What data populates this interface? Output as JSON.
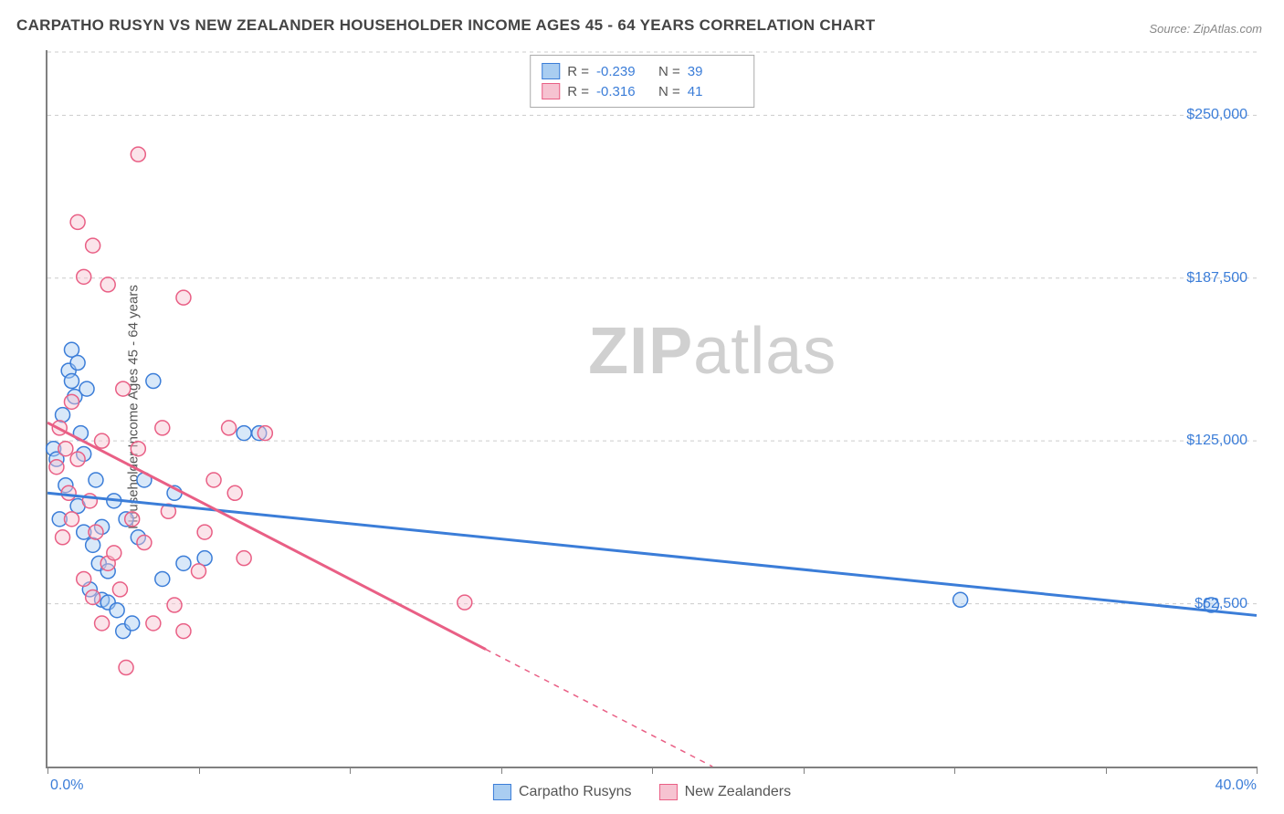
{
  "title": "CARPATHO RUSYN VS NEW ZEALANDER HOUSEHOLDER INCOME AGES 45 - 64 YEARS CORRELATION CHART",
  "source": "Source: ZipAtlas.com",
  "watermark_bold": "ZIP",
  "watermark_light": "atlas",
  "chart": {
    "type": "scatter",
    "ylabel": "Householder Income Ages 45 - 64 years",
    "xlim": [
      0,
      40
    ],
    "ylim": [
      0,
      275000
    ],
    "x_tick_labels": {
      "start": "0.0%",
      "end": "40.0%"
    },
    "y_ticks": [
      62500,
      125000,
      187500,
      250000
    ],
    "y_tick_labels": [
      "$62,500",
      "$125,000",
      "$187,500",
      "$250,000"
    ],
    "background_color": "#ffffff",
    "grid_color": "#cccccc",
    "axis_color": "#808080",
    "marker_radius": 8,
    "marker_opacity": 0.45,
    "line_width": 3,
    "series": [
      {
        "name": "Carpatho Rusyns",
        "color_fill": "#a9cdf1",
        "color_stroke": "#3b7dd8",
        "R": "-0.239",
        "N": "39",
        "trend": {
          "x1": 0,
          "y1": 105000,
          "x2": 40,
          "y2": 58000,
          "dashed_from_x": null
        },
        "points": [
          [
            0.2,
            122000
          ],
          [
            0.3,
            118000
          ],
          [
            0.4,
            95000
          ],
          [
            0.5,
            135000
          ],
          [
            0.6,
            108000
          ],
          [
            0.7,
            152000
          ],
          [
            0.8,
            148000
          ],
          [
            0.8,
            160000
          ],
          [
            0.9,
            142000
          ],
          [
            1.0,
            155000
          ],
          [
            1.0,
            100000
          ],
          [
            1.1,
            128000
          ],
          [
            1.2,
            90000
          ],
          [
            1.2,
            120000
          ],
          [
            1.3,
            145000
          ],
          [
            1.4,
            68000
          ],
          [
            1.5,
            85000
          ],
          [
            1.6,
            110000
          ],
          [
            1.7,
            78000
          ],
          [
            1.8,
            64000
          ],
          [
            1.8,
            92000
          ],
          [
            2.0,
            63000
          ],
          [
            2.0,
            75000
          ],
          [
            2.2,
            102000
          ],
          [
            2.3,
            60000
          ],
          [
            2.5,
            52000
          ],
          [
            2.6,
            95000
          ],
          [
            2.8,
            55000
          ],
          [
            3.0,
            88000
          ],
          [
            3.2,
            110000
          ],
          [
            3.5,
            148000
          ],
          [
            3.8,
            72000
          ],
          [
            4.2,
            105000
          ],
          [
            4.5,
            78000
          ],
          [
            5.2,
            80000
          ],
          [
            6.5,
            128000
          ],
          [
            7.0,
            128000
          ],
          [
            30.2,
            64000
          ],
          [
            38.5,
            62000
          ]
        ]
      },
      {
        "name": "New Zealanders",
        "color_fill": "#f6c3d1",
        "color_stroke": "#e95f85",
        "R": "-0.316",
        "N": "41",
        "trend": {
          "x1": 0,
          "y1": 132000,
          "x2": 22,
          "y2": 0,
          "dashed_from_x": 14.5
        },
        "points": [
          [
            0.3,
            115000
          ],
          [
            0.4,
            130000
          ],
          [
            0.5,
            88000
          ],
          [
            0.6,
            122000
          ],
          [
            0.7,
            105000
          ],
          [
            0.8,
            140000
          ],
          [
            0.8,
            95000
          ],
          [
            1.0,
            209000
          ],
          [
            1.0,
            118000
          ],
          [
            1.2,
            188000
          ],
          [
            1.2,
            72000
          ],
          [
            1.4,
            102000
          ],
          [
            1.5,
            200000
          ],
          [
            1.5,
            65000
          ],
          [
            1.6,
            90000
          ],
          [
            1.8,
            125000
          ],
          [
            1.8,
            55000
          ],
          [
            2.0,
            185000
          ],
          [
            2.0,
            78000
          ],
          [
            2.2,
            82000
          ],
          [
            2.4,
            68000
          ],
          [
            2.5,
            145000
          ],
          [
            2.6,
            38000
          ],
          [
            2.8,
            95000
          ],
          [
            3.0,
            235000
          ],
          [
            3.0,
            122000
          ],
          [
            3.2,
            86000
          ],
          [
            3.5,
            55000
          ],
          [
            3.8,
            130000
          ],
          [
            4.0,
            98000
          ],
          [
            4.2,
            62000
          ],
          [
            4.5,
            180000
          ],
          [
            4.5,
            52000
          ],
          [
            5.0,
            75000
          ],
          [
            5.2,
            90000
          ],
          [
            5.5,
            110000
          ],
          [
            6.0,
            130000
          ],
          [
            6.2,
            105000
          ],
          [
            6.5,
            80000
          ],
          [
            7.2,
            128000
          ],
          [
            13.8,
            63000
          ]
        ]
      }
    ]
  },
  "legend_top_labels": {
    "R": "R =",
    "N": "N ="
  },
  "legend_bottom": [
    "Carpatho Rusyns",
    "New Zealanders"
  ]
}
